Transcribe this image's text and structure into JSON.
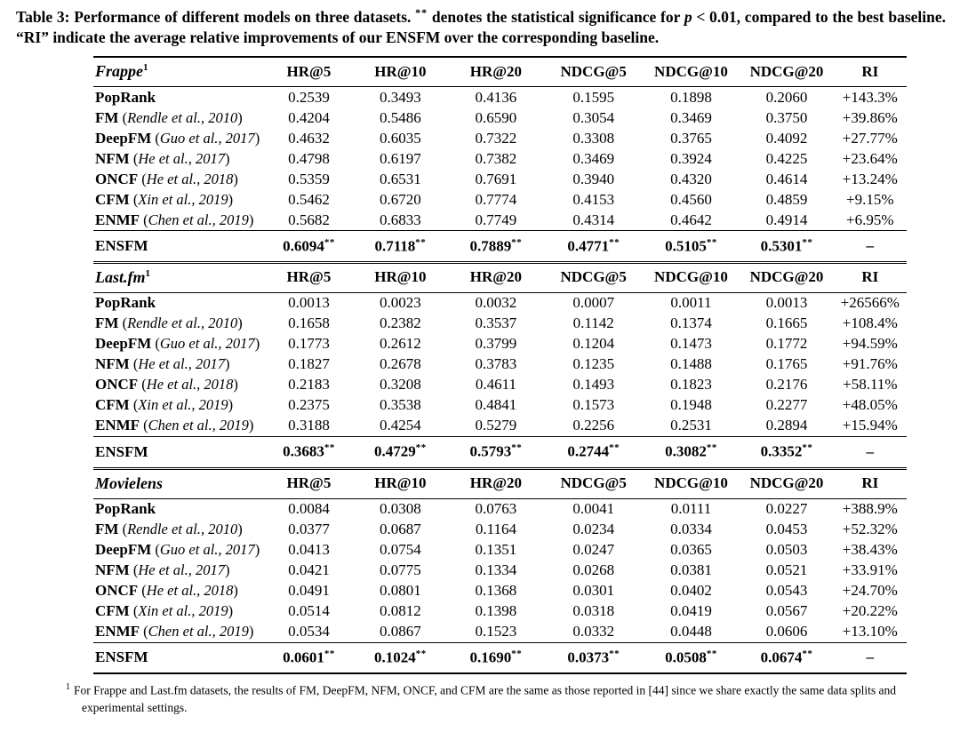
{
  "caption": {
    "part1": "Table 3: Performance of different models on three datasets.",
    "stars": "**",
    "part2": "denotes the statistical significance for",
    "p_symbol": "p",
    "part3": "< 0.01, compared to the best baseline. “RI” indicate the average relative improvements of our ENSFM over the corresponding baseline."
  },
  "table": {
    "columns": [
      "HR@5",
      "HR@10",
      "HR@20",
      "NDCG@5",
      "NDCG@10",
      "NDCG@20",
      "RI"
    ],
    "significance_marker": "**",
    "sections": [
      {
        "dataset": "Frappe",
        "dataset_sup": "1",
        "rows": [
          {
            "model": "PopRank",
            "citation": "",
            "values": [
              "0.2539",
              "0.3493",
              "0.4136",
              "0.1595",
              "0.1898",
              "0.2060"
            ],
            "ri": "+143.3%"
          },
          {
            "model": "FM",
            "citation": "Rendle et al., 2010",
            "values": [
              "0.4204",
              "0.5486",
              "0.6590",
              "0.3054",
              "0.3469",
              "0.3750"
            ],
            "ri": "+39.86%"
          },
          {
            "model": "DeepFM",
            "citation": "Guo et al., 2017",
            "values": [
              "0.4632",
              "0.6035",
              "0.7322",
              "0.3308",
              "0.3765",
              "0.4092"
            ],
            "ri": "+27.77%"
          },
          {
            "model": "NFM",
            "citation": "He et al., 2017",
            "values": [
              "0.4798",
              "0.6197",
              "0.7382",
              "0.3469",
              "0.3924",
              "0.4225"
            ],
            "ri": "+23.64%"
          },
          {
            "model": "ONCF",
            "citation": "He et al., 2018",
            "values": [
              "0.5359",
              "0.6531",
              "0.7691",
              "0.3940",
              "0.4320",
              "0.4614"
            ],
            "ri": "+13.24%"
          },
          {
            "model": "CFM",
            "citation": "Xin et al., 2019",
            "values": [
              "0.5462",
              "0.6720",
              "0.7774",
              "0.4153",
              "0.4560",
              "0.4859"
            ],
            "ri": "+9.15%"
          },
          {
            "model": "ENMF",
            "citation": "Chen et al., 2019",
            "values": [
              "0.5682",
              "0.6833",
              "0.7749",
              "0.4314",
              "0.4642",
              "0.4914"
            ],
            "ri": "+6.95%"
          }
        ],
        "highlight": {
          "model": "ENSFM",
          "values": [
            "0.6094",
            "0.7118",
            "0.7889",
            "0.4771",
            "0.5105",
            "0.5301"
          ],
          "ri": "–"
        }
      },
      {
        "dataset": "Last.fm",
        "dataset_sup": "1",
        "rows": [
          {
            "model": "PopRank",
            "citation": "",
            "values": [
              "0.0013",
              "0.0023",
              "0.0032",
              "0.0007",
              "0.0011",
              "0.0013"
            ],
            "ri": "+26566%"
          },
          {
            "model": "FM",
            "citation": "Rendle et al., 2010",
            "values": [
              "0.1658",
              "0.2382",
              "0.3537",
              "0.1142",
              "0.1374",
              "0.1665"
            ],
            "ri": "+108.4%"
          },
          {
            "model": "DeepFM",
            "citation": "Guo et al., 2017",
            "values": [
              "0.1773",
              "0.2612",
              "0.3799",
              "0.1204",
              "0.1473",
              "0.1772"
            ],
            "ri": "+94.59%"
          },
          {
            "model": "NFM",
            "citation": "He et al., 2017",
            "values": [
              "0.1827",
              "0.2678",
              "0.3783",
              "0.1235",
              "0.1488",
              "0.1765"
            ],
            "ri": "+91.76%"
          },
          {
            "model": "ONCF",
            "citation": "He et al., 2018",
            "values": [
              "0.2183",
              "0.3208",
              "0.4611",
              "0.1493",
              "0.1823",
              "0.2176"
            ],
            "ri": "+58.11%"
          },
          {
            "model": "CFM",
            "citation": "Xin et al., 2019",
            "values": [
              "0.2375",
              "0.3538",
              "0.4841",
              "0.1573",
              "0.1948",
              "0.2277"
            ],
            "ri": "+48.05%"
          },
          {
            "model": "ENMF",
            "citation": "Chen et al., 2019",
            "values": [
              "0.3188",
              "0.4254",
              "0.5279",
              "0.2256",
              "0.2531",
              "0.2894"
            ],
            "ri": "+15.94%"
          }
        ],
        "highlight": {
          "model": "ENSFM",
          "values": [
            "0.3683",
            "0.4729",
            "0.5793",
            "0.2744",
            "0.3082",
            "0.3352"
          ],
          "ri": "–"
        }
      },
      {
        "dataset": "Movielens",
        "dataset_sup": "",
        "rows": [
          {
            "model": "PopRank",
            "citation": "",
            "values": [
              "0.0084",
              "0.0308",
              "0.0763",
              "0.0041",
              "0.0111",
              "0.0227"
            ],
            "ri": "+388.9%"
          },
          {
            "model": "FM",
            "citation": "Rendle et al., 2010",
            "values": [
              "0.0377",
              "0.0687",
              "0.1164",
              "0.0234",
              "0.0334",
              "0.0453"
            ],
            "ri": "+52.32%"
          },
          {
            "model": "DeepFM",
            "citation": "Guo et al., 2017",
            "values": [
              "0.0413",
              "0.0754",
              "0.1351",
              "0.0247",
              "0.0365",
              "0.0503"
            ],
            "ri": "+38.43%"
          },
          {
            "model": "NFM",
            "citation": "He et al., 2017",
            "values": [
              "0.0421",
              "0.0775",
              "0.1334",
              "0.0268",
              "0.0381",
              "0.0521"
            ],
            "ri": "+33.91%"
          },
          {
            "model": "ONCF",
            "citation": "He et al., 2018",
            "values": [
              "0.0491",
              "0.0801",
              "0.1368",
              "0.0301",
              "0.0402",
              "0.0543"
            ],
            "ri": "+24.70%"
          },
          {
            "model": "CFM",
            "citation": "Xin et al., 2019",
            "values": [
              "0.0514",
              "0.0812",
              "0.1398",
              "0.0318",
              "0.0419",
              "0.0567"
            ],
            "ri": "+20.22%"
          },
          {
            "model": "ENMF",
            "citation": "Chen et al., 2019",
            "values": [
              "0.0534",
              "0.0867",
              "0.1523",
              "0.0332",
              "0.0448",
              "0.0606"
            ],
            "ri": "+13.10%"
          }
        ],
        "highlight": {
          "model": "ENSFM",
          "values": [
            "0.0601",
            "0.1024",
            "0.1690",
            "0.0373",
            "0.0508",
            "0.0674"
          ],
          "ri": "–"
        }
      }
    ]
  },
  "footnote": {
    "marker": "1",
    "text": "For Frappe and Last.fm datasets, the results of FM, DeepFM, NFM, ONCF, and CFM are the same as those reported in [44] since we share exactly the same data splits and experimental settings."
  }
}
